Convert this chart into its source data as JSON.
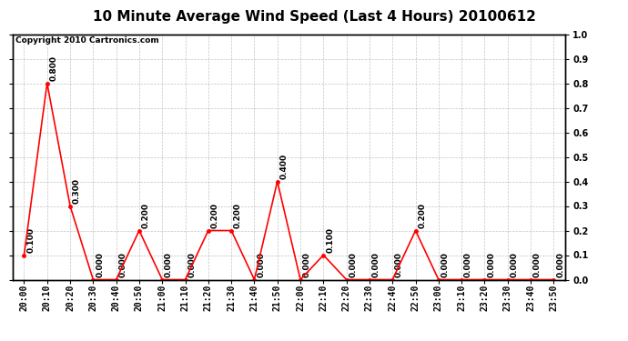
{
  "title": "10 Minute Average Wind Speed (Last 4 Hours) 20100612",
  "copyright": "Copyright 2010 Cartronics.com",
  "x_labels": [
    "20:00",
    "20:10",
    "20:20",
    "20:30",
    "20:40",
    "20:50",
    "21:00",
    "21:10",
    "21:20",
    "21:30",
    "21:40",
    "21:50",
    "22:00",
    "22:10",
    "22:20",
    "22:30",
    "22:40",
    "22:50",
    "23:00",
    "23:10",
    "23:20",
    "23:30",
    "23:40",
    "23:50"
  ],
  "y_values": [
    0.1,
    0.8,
    0.3,
    0.0,
    0.0,
    0.2,
    0.0,
    0.0,
    0.2,
    0.2,
    0.0,
    0.4,
    0.0,
    0.1,
    0.0,
    0.0,
    0.0,
    0.2,
    0.0,
    0.0,
    0.0,
    0.0,
    0.0,
    0.0
  ],
  "line_color": "#ff0000",
  "marker_color": "#ff0000",
  "bg_color": "#ffffff",
  "plot_bg_color": "#ffffff",
  "grid_color": "#aaaaaa",
  "ylim": [
    0.0,
    1.0
  ],
  "yticks_right": [
    0.0,
    0.1,
    0.2,
    0.3,
    0.4,
    0.5,
    0.6,
    0.7,
    0.8,
    0.9,
    1.0
  ],
  "title_fontsize": 11,
  "copyright_fontsize": 6.5,
  "annotation_fontsize": 6.5,
  "tick_fontsize": 7
}
